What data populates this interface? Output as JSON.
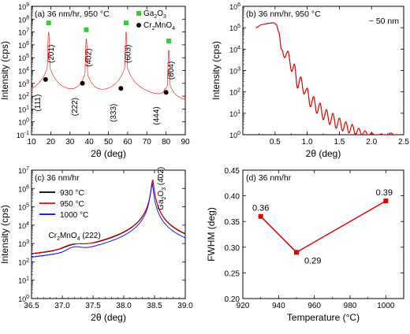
{
  "chart_data": [
    {
      "type": "line",
      "panel": "(a)",
      "annotation": "36 nm/hr, 950 °C",
      "xlabel": "2θ (deg)",
      "ylabel": "Intensity (cps)",
      "xlim": [
        10,
        90
      ],
      "ylim_log10": [
        -1,
        9
      ],
      "yscale": "log",
      "xticks": [
        "10",
        "20",
        "30",
        "40",
        "50",
        "60",
        "70",
        "80",
        "90"
      ],
      "yticks": [
        "10^-1",
        "10^0",
        "10^1",
        "10^2",
        "10^3",
        "10^4",
        "10^5",
        "10^6",
        "10^7",
        "10^8",
        "10^9"
      ],
      "legend_position": "top-right",
      "legend": [
        {
          "name": "Ga2O3",
          "display": [
            "Ga",
            "2",
            "O",
            "3"
          ],
          "marker": "square",
          "color": "#33cc33"
        },
        {
          "name": "Cr2MnO4",
          "display": [
            "Cr",
            "2",
            "MnO",
            "4"
          ],
          "marker": "circle",
          "color": "#000000"
        }
      ],
      "series": [
        {
          "name": "spectrum",
          "color": "#ff0000",
          "baseline": 1.0,
          "peaks": [
            {
              "x": 18.9,
              "y": 10000000.0
            },
            {
              "x": 38.5,
              "y": 3000000.0
            },
            {
              "x": 59.2,
              "y": 10000000.0
            },
            {
              "x": 81.4,
              "y": 400000.0
            },
            {
              "x": 18.3,
              "y": 1000.0
            },
            {
              "x": 37.2,
              "y": 400.0
            },
            {
              "x": 57.3,
              "y": 200.0
            },
            {
              "x": 79.3,
              "y": 100.0
            }
          ]
        }
      ],
      "markers": [
        {
          "kind": "Ga2O3",
          "x": 18.9,
          "y": 50000000.0
        },
        {
          "kind": "Ga2O3",
          "x": 38.5,
          "y": 15000000.0
        },
        {
          "kind": "Ga2O3",
          "x": 59.2,
          "y": 50000000.0
        },
        {
          "kind": "Ga2O3",
          "x": 81.4,
          "y": 2000000.0
        },
        {
          "kind": "Cr2MnO4",
          "x": 17.3,
          "y": 2000.0
        },
        {
          "kind": "Cr2MnO4",
          "x": 36.5,
          "y": 1000.0
        },
        {
          "kind": "Cr2MnO4",
          "x": 56.5,
          "y": 400.0
        },
        {
          "kind": "Cr2MnO4",
          "x": 80.0,
          "y": 200.0
        }
      ],
      "peak_labels": [
        {
          "text": "(2̄01)",
          "x": 21.5,
          "y": 200000.0
        },
        {
          "text": "(4̄02)",
          "x": 41.0,
          "y": 100000.0
        },
        {
          "text": "(6̄03)",
          "x": 61.5,
          "y": 200000.0
        },
        {
          "text": "(8̄04)",
          "x": 83.8,
          "y": 10000.0
        },
        {
          "text": "(111)",
          "x": 14.5,
          "y": 30
        },
        {
          "text": "(222)",
          "x": 33.8,
          "y": 15
        },
        {
          "text": "(333)",
          "x": 54.0,
          "y": 5
        },
        {
          "text": "(444)",
          "x": 76.3,
          "y": 3
        }
      ]
    },
    {
      "type": "line",
      "panel": "(b)",
      "annotation": "36 nm/hr, 950 °C",
      "annotation2": "~ 50 nm",
      "xlabel": "2θ (deg)",
      "ylabel": "Intensity (cps)",
      "xlim": [
        0.0,
        2.5
      ],
      "ylim_log10": [
        0,
        6
      ],
      "yscale": "log",
      "xticks": [
        "0.5",
        "1.0",
        "1.5",
        "2.0",
        "2.5"
      ],
      "yticks": [
        "10^0",
        "10^1",
        "10^2",
        "10^3",
        "10^4",
        "10^5",
        "10^6"
      ],
      "series": [
        {
          "name": "XRR",
          "color": "#dd0000",
          "x": [
            0.2,
            0.3,
            0.4,
            0.48,
            0.52,
            0.56,
            0.6,
            0.65,
            0.7,
            0.76,
            0.8,
            0.85,
            0.9,
            0.95,
            1.0,
            1.05,
            1.1,
            1.15,
            1.2,
            1.25,
            1.3,
            1.35,
            1.4,
            1.45,
            1.5,
            1.55,
            1.6,
            1.65,
            1.7,
            1.75,
            1.8,
            1.85,
            1.9,
            1.95,
            2.0,
            2.05,
            2.1,
            2.15,
            2.2,
            2.25,
            2.3,
            2.35,
            2.4,
            2.45
          ],
          "y": [
            100000.0,
            140000.0,
            160000.0,
            170000.0,
            140000.0,
            60000.0,
            10000.0,
            4000.0,
            8000.0,
            900.0,
            2000.0,
            150.0,
            500.0,
            80.0,
            150.0,
            20.0,
            60.0,
            10.0,
            30.0,
            5.0,
            15.0,
            3.0,
            10.0,
            2.0,
            6.0,
            1.5,
            4.0,
            1.2,
            3.0,
            1.0,
            2.0,
            1.0,
            1.5,
            0.9,
            1.2,
            1.0,
            0.8,
            1.1,
            0.9,
            1.0,
            1.2,
            1.0,
            0.9,
            1.0
          ]
        }
      ]
    },
    {
      "type": "line",
      "panel": "(c)",
      "annotation": "36 nm/hr",
      "xlabel": "2θ (deg)",
      "ylabel": "Intensity (cps)",
      "xlim": [
        36.5,
        39.0
      ],
      "ylim_log10": [
        0,
        7
      ],
      "yscale": "log",
      "xticks": [
        "36.5",
        "37.0",
        "37.5",
        "38.0",
        "38.5",
        "39.0"
      ],
      "yticks": [
        "10^0",
        "10^1",
        "10^2",
        "10^3",
        "10^4",
        "10^5",
        "10^6",
        "10^7"
      ],
      "legend_position": "top-left",
      "peak_label_left": {
        "parts": [
          "Cr",
          "2",
          "MnO",
          "4",
          " (222)"
        ]
      },
      "peak_label_right": {
        "parts": [
          "Ga",
          "2",
          "O",
          "3",
          " (4̄02)"
        ]
      },
      "series": [
        {
          "name": "930 °C",
          "color": "#000000",
          "peak1_x": 37.22,
          "peak1_y": 300,
          "peak1_w": 0.2,
          "peak2_x": 38.47,
          "peak2_y": 2500000.0,
          "peak2_w": 0.018,
          "base": 20
        },
        {
          "name": "950 °C",
          "color": "#ff0000",
          "peak1_x": 37.18,
          "peak1_y": 300,
          "peak1_w": 0.17,
          "peak2_x": 38.47,
          "peak2_y": 3000000.0,
          "peak2_w": 0.017,
          "base": 8
        },
        {
          "name": "1000 °C",
          "color": "#0000ff",
          "peak1_x": 37.2,
          "peak1_y": 250,
          "peak1_w": 0.14,
          "peak2_x": 38.46,
          "peak2_y": 2000000.0,
          "peak2_w": 0.016,
          "base": 12
        }
      ]
    },
    {
      "type": "line",
      "panel": "(d)",
      "annotation": "36 nm/hr",
      "xlabel": "Temperature (°C)",
      "ylabel": "FWHM (deg)",
      "xlim": [
        920,
        1010
      ],
      "ylim": [
        0.2,
        0.45
      ],
      "xticks": [
        "920",
        "940",
        "960",
        "980",
        "1000"
      ],
      "yticks": [
        "0.20",
        "0.25",
        "0.30",
        "0.35",
        "0.40",
        "0.45"
      ],
      "series": [
        {
          "name": "FWHM",
          "color": "#dd0000",
          "x": [
            930,
            950,
            1000
          ],
          "y": [
            0.36,
            0.29,
            0.39
          ],
          "labels": [
            "0.36",
            "0.29",
            "0.39"
          ]
        }
      ]
    }
  ]
}
